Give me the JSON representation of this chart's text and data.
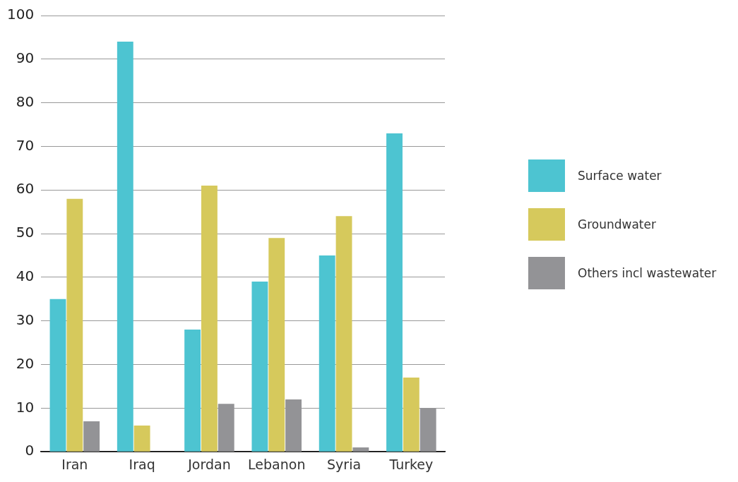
{
  "chart_data": {
    "type": "bar",
    "categories": [
      "Iran",
      "Iraq",
      "Jordan",
      "Lebanon",
      "Syria",
      "Turkey"
    ],
    "series": [
      {
        "name": "Surface water",
        "color": "#4dc4d1",
        "values": [
          35,
          94,
          28,
          39,
          45,
          73
        ]
      },
      {
        "name": "Groundwater",
        "color": "#d6c95c",
        "values": [
          58,
          6,
          61,
          49,
          54,
          17
        ]
      },
      {
        "name": "Others incl wastewater",
        "color": "#939396",
        "values": [
          7,
          0,
          11,
          12,
          1,
          10
        ]
      }
    ],
    "ylim": [
      0,
      100
    ],
    "yticks": [
      0,
      10,
      20,
      30,
      40,
      50,
      60,
      70,
      80,
      90,
      100
    ],
    "grid": "y",
    "legend": "right"
  }
}
